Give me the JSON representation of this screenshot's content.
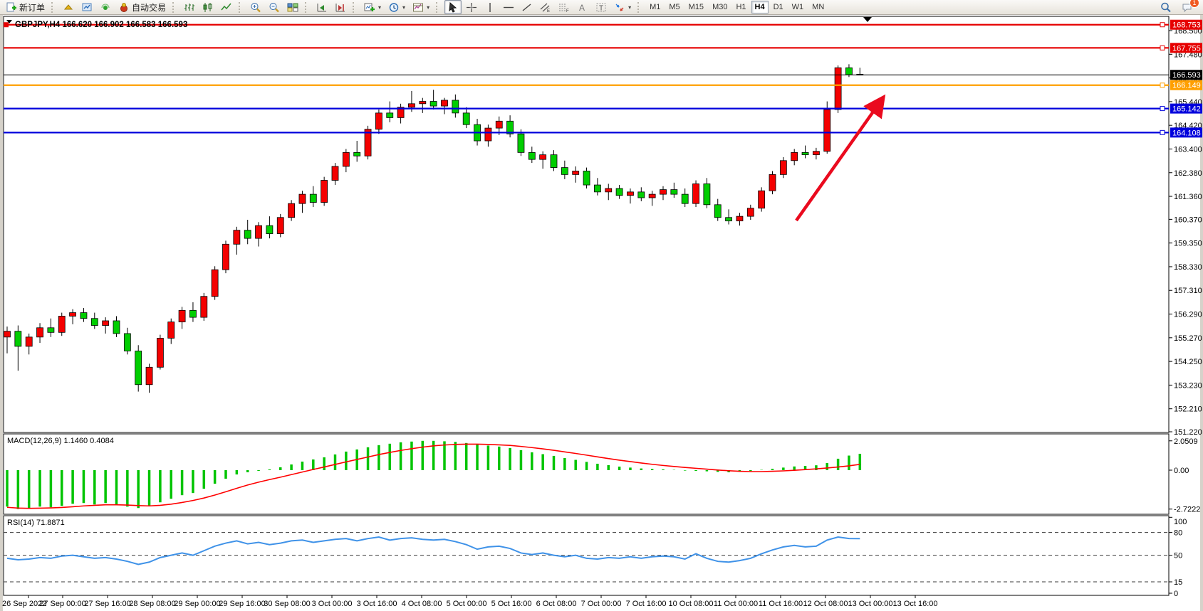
{
  "toolbar": {
    "new_order_label": "新订单",
    "autotrade_label": "自动交易",
    "timeframes": [
      "M1",
      "M5",
      "M15",
      "M30",
      "H1",
      "H4",
      "D1",
      "W1",
      "MN"
    ],
    "active_timeframe": "H4",
    "chat_badge": "1"
  },
  "chart": {
    "symbol_title": "GBPJPY,H4 166.620 166.902 166.583 166.593",
    "price_axis_ticks": [
      "168.500",
      "167.480",
      "166.460",
      "165.440",
      "164.420",
      "163.400",
      "162.380",
      "161.360",
      "160.370",
      "159.350",
      "158.330",
      "157.310",
      "156.290",
      "155.270",
      "154.250",
      "153.230",
      "152.210",
      "151.220"
    ],
    "time_axis_labels": [
      "26 Sep 2022",
      "27 Sep 00:00",
      "27 Sep 16:00",
      "28 Sep 08:00",
      "29 Sep 00:00",
      "29 Sep 16:00",
      "30 Sep 08:00",
      "3 Oct 00:00",
      "3 Oct 16:00",
      "4 Oct 08:00",
      "5 Oct 00:00",
      "5 Oct 16:00",
      "6 Oct 08:00",
      "7 Oct 00:00",
      "7 Oct 16:00",
      "10 Oct 08:00",
      "11 Oct 00:00",
      "11 Oct 16:00",
      "12 Oct 08:00",
      "13 Oct 00:00",
      "13 Oct 16:00"
    ],
    "hlines": [
      {
        "price": 168.753,
        "label": "168.753",
        "color": "#e60000"
      },
      {
        "price": 167.755,
        "label": "167.755",
        "color": "#e60000"
      },
      {
        "price": 166.149,
        "label": "166.149",
        "color": "#ff9f00"
      },
      {
        "price": 165.142,
        "label": "165.142",
        "color": "#0000dc"
      },
      {
        "price": 164.108,
        "label": "164.108",
        "color": "#0000dc"
      }
    ],
    "current_price": {
      "value": 166.593,
      "label": "166.593",
      "box_color": "#000000",
      "text_color": "#ffffff"
    },
    "colors": {
      "bull": "#f40000",
      "bear": "#00ce00",
      "wick": "#000000",
      "frame": "#000000",
      "background": "#ffffff"
    }
  },
  "macd": {
    "label": "MACD(12,26,9) 1.1460 0.4084",
    "axis_ticks": [
      "2.0509",
      "0.00",
      "-2.7222"
    ],
    "hist_color": "#00c400",
    "signal_color": "#ff0000"
  },
  "rsi": {
    "label": "RSI(14) 71.8871",
    "axis_ticks": [
      "100",
      "80",
      "50",
      "15",
      "0"
    ],
    "level_values": [
      80,
      50,
      15
    ],
    "line_color": "#3f92e8"
  },
  "annotation_arrow": {
    "color": "#ea0a1e"
  },
  "chart_data": {
    "type": "candlestick",
    "symbol": "GBPJPY",
    "timeframe": "H4",
    "last_bar": {
      "open": 166.62,
      "high": 166.902,
      "low": 166.583,
      "close": 166.593
    },
    "price_range_visible": [
      151.22,
      169.05
    ],
    "candles_ohlc": [
      [
        155.3,
        155.75,
        154.6,
        155.55
      ],
      [
        155.55,
        155.8,
        153.85,
        154.9
      ],
      [
        154.9,
        155.45,
        154.55,
        155.3
      ],
      [
        155.3,
        155.9,
        155.05,
        155.7
      ],
      [
        155.7,
        156.1,
        155.3,
        155.5
      ],
      [
        155.5,
        156.35,
        155.35,
        156.2
      ],
      [
        156.2,
        156.5,
        155.85,
        156.35
      ],
      [
        156.35,
        156.55,
        155.95,
        156.1
      ],
      [
        156.1,
        156.35,
        155.65,
        155.8
      ],
      [
        155.8,
        156.15,
        155.45,
        156.0
      ],
      [
        156.0,
        156.2,
        155.3,
        155.45
      ],
      [
        155.45,
        155.7,
        154.55,
        154.7
      ],
      [
        154.7,
        154.95,
        152.95,
        153.25
      ],
      [
        153.25,
        154.15,
        152.9,
        154.0
      ],
      [
        154.0,
        155.4,
        153.9,
        155.25
      ],
      [
        155.25,
        156.1,
        155.0,
        155.95
      ],
      [
        155.95,
        156.6,
        155.65,
        156.45
      ],
      [
        156.45,
        156.8,
        155.95,
        156.15
      ],
      [
        156.15,
        157.2,
        156.0,
        157.05
      ],
      [
        157.05,
        158.35,
        156.9,
        158.2
      ],
      [
        158.2,
        159.45,
        158.05,
        159.3
      ],
      [
        159.3,
        160.05,
        158.85,
        159.9
      ],
      [
        159.9,
        160.35,
        159.3,
        159.55
      ],
      [
        159.55,
        160.25,
        159.2,
        160.1
      ],
      [
        160.1,
        160.5,
        159.55,
        159.75
      ],
      [
        159.75,
        160.6,
        159.6,
        160.45
      ],
      [
        160.45,
        161.2,
        160.3,
        161.05
      ],
      [
        161.05,
        161.6,
        160.65,
        161.45
      ],
      [
        161.45,
        161.8,
        160.9,
        161.1
      ],
      [
        161.1,
        162.2,
        160.95,
        162.05
      ],
      [
        162.05,
        162.8,
        161.85,
        162.65
      ],
      [
        162.65,
        163.4,
        162.4,
        163.25
      ],
      [
        163.25,
        163.75,
        162.85,
        163.1
      ],
      [
        163.1,
        164.4,
        162.95,
        164.25
      ],
      [
        164.25,
        165.1,
        164.05,
        164.95
      ],
      [
        164.95,
        165.45,
        164.55,
        164.75
      ],
      [
        164.75,
        165.35,
        164.5,
        165.2
      ],
      [
        165.2,
        165.9,
        165.0,
        165.35
      ],
      [
        165.35,
        165.6,
        164.95,
        165.45
      ],
      [
        165.45,
        165.95,
        165.1,
        165.25
      ],
      [
        165.25,
        165.6,
        164.9,
        165.5
      ],
      [
        165.5,
        165.75,
        164.75,
        164.95
      ],
      [
        164.95,
        165.2,
        164.3,
        164.45
      ],
      [
        164.45,
        164.7,
        163.55,
        163.75
      ],
      [
        163.75,
        164.45,
        163.5,
        164.3
      ],
      [
        164.3,
        164.8,
        164.0,
        164.6
      ],
      [
        164.6,
        164.85,
        163.9,
        164.05
      ],
      [
        164.05,
        164.25,
        163.1,
        163.25
      ],
      [
        163.25,
        163.5,
        162.8,
        162.95
      ],
      [
        162.95,
        163.3,
        162.55,
        163.15
      ],
      [
        163.15,
        163.35,
        162.45,
        162.6
      ],
      [
        162.6,
        162.9,
        162.1,
        162.3
      ],
      [
        162.3,
        162.65,
        161.95,
        162.45
      ],
      [
        162.45,
        162.6,
        161.7,
        161.85
      ],
      [
        161.85,
        162.15,
        161.4,
        161.55
      ],
      [
        161.55,
        161.9,
        161.2,
        161.7
      ],
      [
        161.7,
        161.85,
        161.25,
        161.4
      ],
      [
        161.4,
        161.7,
        161.05,
        161.55
      ],
      [
        161.55,
        161.75,
        161.15,
        161.3
      ],
      [
        161.3,
        161.6,
        160.95,
        161.45
      ],
      [
        161.45,
        161.8,
        161.2,
        161.65
      ],
      [
        161.65,
        161.95,
        161.3,
        161.45
      ],
      [
        161.45,
        161.7,
        160.9,
        161.05
      ],
      [
        161.05,
        162.05,
        160.9,
        161.9
      ],
      [
        161.9,
        162.15,
        160.85,
        161.0
      ],
      [
        161.0,
        161.25,
        160.3,
        160.45
      ],
      [
        160.45,
        160.8,
        160.15,
        160.3
      ],
      [
        160.3,
        160.65,
        160.1,
        160.5
      ],
      [
        160.5,
        161.0,
        160.35,
        160.85
      ],
      [
        160.85,
        161.75,
        160.7,
        161.6
      ],
      [
        161.6,
        162.45,
        161.45,
        162.3
      ],
      [
        162.3,
        163.05,
        162.15,
        162.9
      ],
      [
        162.9,
        163.4,
        162.7,
        163.25
      ],
      [
        163.25,
        163.55,
        163.0,
        163.15
      ],
      [
        163.15,
        163.45,
        162.95,
        163.3
      ],
      [
        163.3,
        165.45,
        163.2,
        165.1
      ],
      [
        165.1,
        167.0,
        164.95,
        166.9
      ],
      [
        166.9,
        167.05,
        166.5,
        166.6
      ],
      [
        166.62,
        166.9,
        166.58,
        166.59
      ]
    ],
    "macd_histogram": [
      -2.55,
      -2.72,
      -2.65,
      -2.55,
      -2.6,
      -2.5,
      -2.35,
      -2.3,
      -2.4,
      -2.3,
      -2.45,
      -2.55,
      -2.65,
      -2.5,
      -2.25,
      -2.0,
      -1.75,
      -1.6,
      -1.3,
      -0.95,
      -0.6,
      -0.3,
      -0.15,
      -0.05,
      0.05,
      0.2,
      0.4,
      0.6,
      0.75,
      0.9,
      1.1,
      1.3,
      1.45,
      1.6,
      1.75,
      1.85,
      1.95,
      2.0,
      2.05,
      2.05,
      2.02,
      1.98,
      1.9,
      1.8,
      1.72,
      1.65,
      1.55,
      1.4,
      1.25,
      1.12,
      1.0,
      0.85,
      0.72,
      0.58,
      0.45,
      0.35,
      0.25,
      0.18,
      0.12,
      0.08,
      0.05,
      0.02,
      -0.03,
      -0.05,
      -0.08,
      -0.12,
      -0.15,
      -0.12,
      -0.06,
      0.02,
      0.1,
      0.18,
      0.26,
      0.3,
      0.34,
      0.5,
      0.8,
      1.02,
      1.146
    ],
    "macd_signal": [
      -2.6,
      -2.65,
      -2.67,
      -2.66,
      -2.64,
      -2.61,
      -2.56,
      -2.5,
      -2.46,
      -2.42,
      -2.42,
      -2.44,
      -2.48,
      -2.5,
      -2.46,
      -2.38,
      -2.26,
      -2.12,
      -1.95,
      -1.74,
      -1.51,
      -1.27,
      -1.04,
      -0.84,
      -0.66,
      -0.49,
      -0.31,
      -0.13,
      0.05,
      0.22,
      0.4,
      0.58,
      0.75,
      0.92,
      1.09,
      1.24,
      1.38,
      1.5,
      1.61,
      1.7,
      1.76,
      1.8,
      1.82,
      1.82,
      1.8,
      1.77,
      1.73,
      1.66,
      1.58,
      1.49,
      1.39,
      1.28,
      1.17,
      1.05,
      0.93,
      0.81,
      0.7,
      0.6,
      0.5,
      0.41,
      0.33,
      0.26,
      0.19,
      0.13,
      0.07,
      0.01,
      -0.04,
      -0.08,
      -0.1,
      -0.1,
      -0.08,
      -0.05,
      -0.01,
      0.04,
      0.09,
      0.15,
      0.22,
      0.3,
      0.4084
    ],
    "macd_current": {
      "macd": 1.146,
      "signal": 0.4084
    },
    "macd_axis_range": [
      -2.7222,
      2.0509
    ],
    "rsi_values": [
      46,
      44,
      45,
      47,
      46,
      49,
      50,
      48,
      46,
      47,
      45,
      42,
      38,
      41,
      47,
      50,
      53,
      50,
      56,
      62,
      66,
      69,
      65,
      67,
      64,
      66,
      69,
      70,
      67,
      69,
      71,
      72,
      69,
      72,
      74,
      70,
      72,
      73,
      71,
      70,
      71,
      68,
      64,
      58,
      61,
      62,
      59,
      53,
      51,
      53,
      50,
      48,
      50,
      46,
      45,
      47,
      46,
      48,
      46,
      48,
      49,
      48,
      45,
      52,
      46,
      42,
      41,
      43,
      46,
      52,
      57,
      61,
      63,
      61,
      62,
      70,
      74,
      72,
      71.89
    ],
    "rsi_current": 71.8871
  }
}
